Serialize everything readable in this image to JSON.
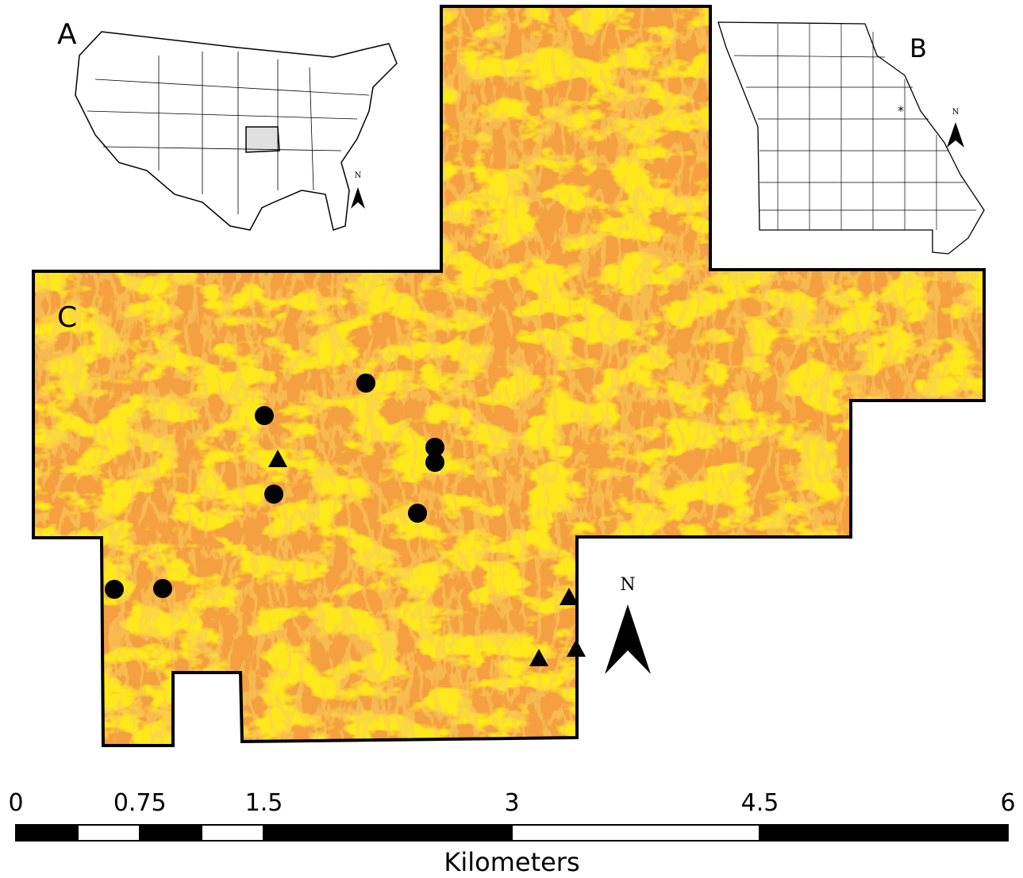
{
  "inset_a": {
    "label": "A",
    "north": "N"
  },
  "inset_b": {
    "label": "B",
    "north": "N"
  },
  "main_map": {
    "label": "C",
    "north": "N"
  },
  "scale_bar": {
    "ticks": [
      0,
      0.75,
      1.5,
      3,
      4.5,
      6
    ],
    "unit": "Kilometers"
  }
}
